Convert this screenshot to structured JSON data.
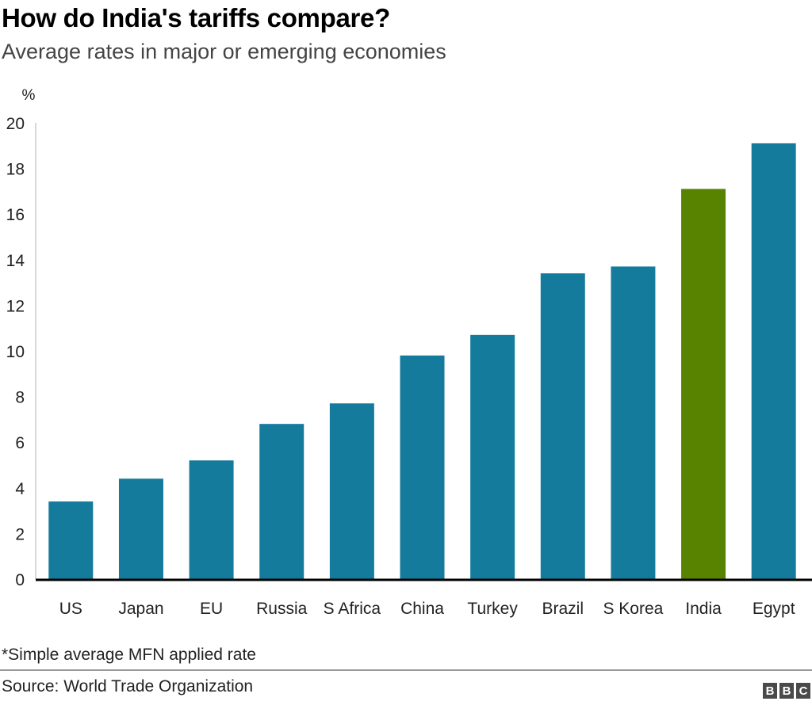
{
  "header": {
    "title": "How do India's tariffs compare?",
    "subtitle": "Average rates in major or emerging economies"
  },
  "footer": {
    "note": "*Simple average MFN applied rate",
    "source": "Source: World Trade Organization",
    "logo_letters": [
      "B",
      "B",
      "C"
    ]
  },
  "colors": {
    "bar_default": "#157b9d",
    "bar_highlight": "#588300",
    "axis": "#000000",
    "axis_left": "#cccccc"
  },
  "chart_data": {
    "type": "bar",
    "title": "How do India's tariffs compare?",
    "subtitle": "Average rates in major or emerging economies",
    "xlabel": "",
    "ylabel": "%",
    "ylim": [
      0,
      20
    ],
    "yticks": [
      0,
      2,
      4,
      6,
      8,
      10,
      12,
      14,
      16,
      18,
      20
    ],
    "grid": false,
    "categories": [
      "US",
      "Japan",
      "EU",
      "Russia",
      "S Africa",
      "China",
      "Turkey",
      "Brazil",
      "S Korea",
      "India",
      "Egypt"
    ],
    "values": [
      3.4,
      4.4,
      5.2,
      6.8,
      7.7,
      9.8,
      10.7,
      13.4,
      13.7,
      17.1,
      19.1
    ],
    "highlight": "India"
  }
}
